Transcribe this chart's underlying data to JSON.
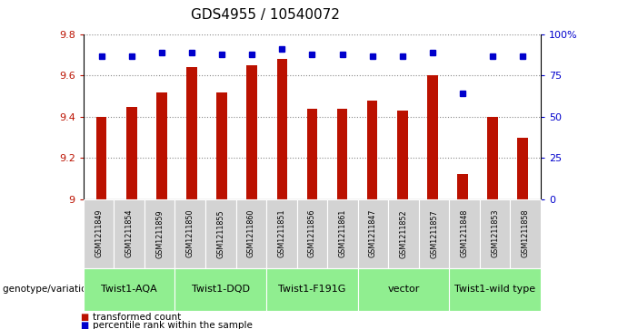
{
  "title": "GDS4955 / 10540072",
  "samples": [
    "GSM1211849",
    "GSM1211854",
    "GSM1211859",
    "GSM1211850",
    "GSM1211855",
    "GSM1211860",
    "GSM1211851",
    "GSM1211856",
    "GSM1211861",
    "GSM1211847",
    "GSM1211852",
    "GSM1211857",
    "GSM1211848",
    "GSM1211853",
    "GSM1211858"
  ],
  "bar_values": [
    9.4,
    9.45,
    9.52,
    9.64,
    9.52,
    9.65,
    9.68,
    9.44,
    9.44,
    9.48,
    9.43,
    9.6,
    9.12,
    9.4,
    9.3
  ],
  "percentile_values": [
    87,
    87,
    89,
    89,
    88,
    88,
    91,
    88,
    88,
    87,
    87,
    89,
    64,
    87,
    87
  ],
  "ymin": 9.0,
  "ymax": 9.8,
  "yticks": [
    9.0,
    9.2,
    9.4,
    9.6,
    9.8
  ],
  "right_yticks": [
    0,
    25,
    50,
    75,
    100
  ],
  "right_ytick_labels": [
    "0",
    "25",
    "50",
    "75",
    "100%"
  ],
  "bar_color": "#bb1100",
  "percentile_color": "#0000cc",
  "dotted_line_color": "#888888",
  "groups": [
    {
      "label": "Twist1-AQA",
      "start": 0,
      "end": 3,
      "color": "#90ee90"
    },
    {
      "label": "Twist1-DQD",
      "start": 3,
      "end": 6,
      "color": "#90ee90"
    },
    {
      "label": "Twist1-F191G",
      "start": 6,
      "end": 9,
      "color": "#90ee90"
    },
    {
      "label": "vector",
      "start": 9,
      "end": 12,
      "color": "#90ee90"
    },
    {
      "label": "Twist1-wild type",
      "start": 12,
      "end": 15,
      "color": "#90ee90"
    }
  ],
  "sample_box_color": "#d3d3d3",
  "genotype_label": "genotype/variation",
  "legend_bar_label": "transformed count",
  "legend_pct_label": "percentile rank within the sample",
  "background_color": "#ffffff",
  "title_fontsize": 11,
  "tick_fontsize": 8,
  "label_fontsize": 8
}
